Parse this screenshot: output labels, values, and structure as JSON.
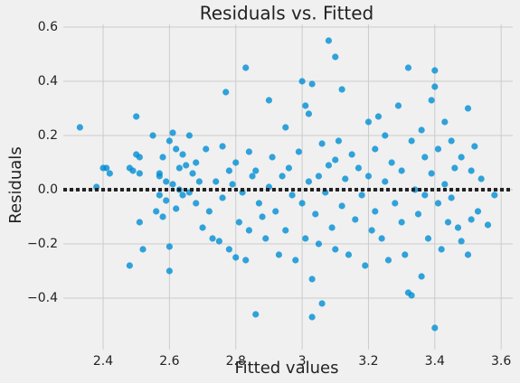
{
  "chart_data": {
    "type": "scatter",
    "title": "Residuals vs. Fitted",
    "x_label": "Fitted values",
    "y_label": "Residuals",
    "color": "#008fd5",
    "grid": true,
    "reference_line": 0,
    "xlim": [
      2.28,
      3.635
    ],
    "ylim": [
      -0.59,
      0.61
    ],
    "xticks": [
      2.4,
      2.6,
      2.8,
      3.0,
      3.2,
      3.4,
      3.6
    ],
    "yticks": [
      {
        "value": -0.4,
        "label": "−0.4"
      },
      {
        "value": -0.2,
        "label": "−0.2"
      },
      {
        "value": 0,
        "label": "0.0"
      },
      0.2,
      0.4,
      0.6
    ],
    "x": [
      2.33,
      2.38,
      2.4,
      2.41,
      2.42,
      2.48,
      2.48,
      2.49,
      2.5,
      2.5,
      2.51,
      2.51,
      2.51,
      2.52,
      2.55,
      2.56,
      2.57,
      2.57,
      2.57,
      2.58,
      2.58,
      2.59,
      2.59,
      2.6,
      2.6,
      2.6,
      2.61,
      2.61,
      2.62,
      2.62,
      2.63,
      2.63,
      2.64,
      2.64,
      2.65,
      2.66,
      2.66,
      2.67,
      2.68,
      2.68,
      2.69,
      2.7,
      2.71,
      2.72,
      2.73,
      2.74,
      2.75,
      2.76,
      2.76,
      2.77,
      2.78,
      2.78,
      2.79,
      2.8,
      2.8,
      2.81,
      2.82,
      2.83,
      2.83,
      2.84,
      2.84,
      2.85,
      2.86,
      2.86,
      2.87,
      2.88,
      2.89,
      2.9,
      2.9,
      2.91,
      2.92,
      2.93,
      2.94,
      2.95,
      2.95,
      2.96,
      2.97,
      2.98,
      2.99,
      3.0,
      3.0,
      3.01,
      3.01,
      3.02,
      3.02,
      3.03,
      3.03,
      3.03,
      3.04,
      3.05,
      3.05,
      3.06,
      3.06,
      3.07,
      3.08,
      3.08,
      3.09,
      3.1,
      3.1,
      3.1,
      3.11,
      3.12,
      3.12,
      3.13,
      3.14,
      3.15,
      3.16,
      3.17,
      3.18,
      3.19,
      3.2,
      3.2,
      3.21,
      3.22,
      3.22,
      3.23,
      3.24,
      3.25,
      3.25,
      3.26,
      3.27,
      3.28,
      3.29,
      3.3,
      3.3,
      3.31,
      3.32,
      3.32,
      3.33,
      3.33,
      3.34,
      3.35,
      3.36,
      3.36,
      3.37,
      3.37,
      3.38,
      3.39,
      3.39,
      3.4,
      3.4,
      3.4,
      3.41,
      3.41,
      3.42,
      3.43,
      3.43,
      3.44,
      3.45,
      3.45,
      3.46,
      3.47,
      3.48,
      3.48,
      3.5,
      3.5,
      3.51,
      3.51,
      3.52,
      3.53,
      3.54,
      3.56,
      3.58
    ],
    "y": [
      0.23,
      0.01,
      0.08,
      0.08,
      0.06,
      -0.28,
      0.08,
      0.07,
      0.27,
      0.13,
      0.12,
      0.06,
      -0.12,
      -0.22,
      0.2,
      -0.08,
      0.06,
      0.05,
      -0.02,
      -0.1,
      0.12,
      -0.04,
      0.03,
      0.18,
      -0.21,
      -0.3,
      0.21,
      0.02,
      0.15,
      -0.07,
      0.08,
      0.0,
      0.13,
      -0.02,
      0.09,
      0.2,
      -0.01,
      0.06,
      0.1,
      -0.05,
      0.03,
      -0.14,
      0.15,
      -0.08,
      -0.18,
      0.03,
      -0.19,
      0.16,
      -0.03,
      0.36,
      0.07,
      -0.22,
      0.02,
      0.1,
      -0.25,
      -0.12,
      -0.01,
      0.45,
      -0.26,
      0.14,
      -0.15,
      0.05,
      -0.46,
      0.07,
      -0.05,
      -0.1,
      -0.18,
      0.33,
      0.01,
      0.12,
      -0.08,
      -0.24,
      0.05,
      0.23,
      -0.15,
      0.08,
      -0.02,
      -0.26,
      0.14,
      0.4,
      -0.05,
      0.31,
      -0.18,
      0.28,
      0.03,
      0.39,
      -0.33,
      -0.47,
      -0.09,
      0.05,
      -0.2,
      -0.42,
      0.17,
      -0.01,
      0.55,
      0.09,
      -0.14,
      0.49,
      0.11,
      -0.22,
      0.18,
      0.37,
      -0.06,
      0.04,
      -0.24,
      0.13,
      -0.11,
      0.08,
      -0.02,
      -0.28,
      0.25,
      0.05,
      -0.15,
      0.15,
      -0.08,
      0.27,
      -0.18,
      0.2,
      0.03,
      -0.26,
      0.1,
      -0.05,
      0.31,
      -0.12,
      0.07,
      -0.24,
      0.45,
      -0.38,
      -0.39,
      0.18,
      0.0,
      -0.09,
      0.22,
      -0.32,
      0.12,
      -0.02,
      -0.18,
      0.33,
      0.06,
      0.44,
      -0.51,
      0.38,
      -0.05,
      0.15,
      -0.22,
      0.25,
      0.02,
      -0.12,
      0.18,
      -0.03,
      0.08,
      -0.14,
      0.12,
      -0.19,
      0.3,
      -0.24,
      0.07,
      -0.11,
      0.16,
      -0.08,
      0.04,
      -0.13,
      -0.02
    ]
  }
}
